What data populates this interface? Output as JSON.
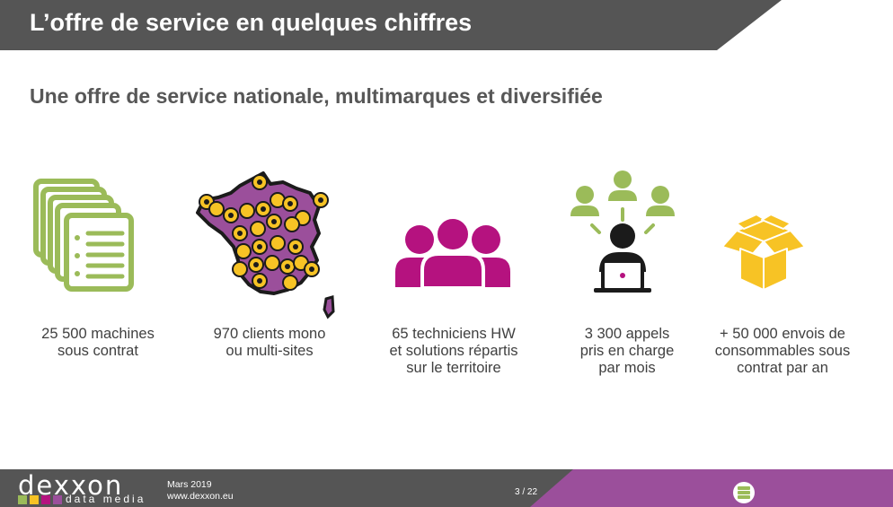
{
  "slide": {
    "title": "L’offre de service en quelques chiffres",
    "subtitle": "Une offre de service nationale, multimarques et diversifiée"
  },
  "stats": [
    {
      "icon": "documents-stack-icon",
      "lines": [
        "25 500 machines",
        "sous contrat"
      ]
    },
    {
      "icon": "france-map-pins-icon",
      "lines": [
        "970 clients mono",
        "ou multi-sites"
      ]
    },
    {
      "icon": "technicians-group-icon",
      "lines": [
        "65 techniciens HW",
        "et solutions répartis",
        "sur le territoire"
      ]
    },
    {
      "icon": "support-agent-laptop-icon",
      "lines": [
        "3 300 appels",
        "pris en charge",
        "par mois"
      ]
    },
    {
      "icon": "open-box-icon",
      "lines": [
        "+ 50 000 envois de",
        "consommables sous",
        "contrat par an"
      ]
    }
  ],
  "footer": {
    "brand": "dexxon",
    "brand_sub": "data media",
    "date": "Mars 2019",
    "website": "www.dexxon.eu",
    "page": "3 / 22"
  },
  "colors": {
    "title_bar": "#555555",
    "footer_bar": "#555555",
    "purple": "#9b4f9b",
    "green": "#9bbb59",
    "yellow": "#f7c325",
    "magenta": "#b5127f",
    "dark": "#1b1b1b"
  }
}
